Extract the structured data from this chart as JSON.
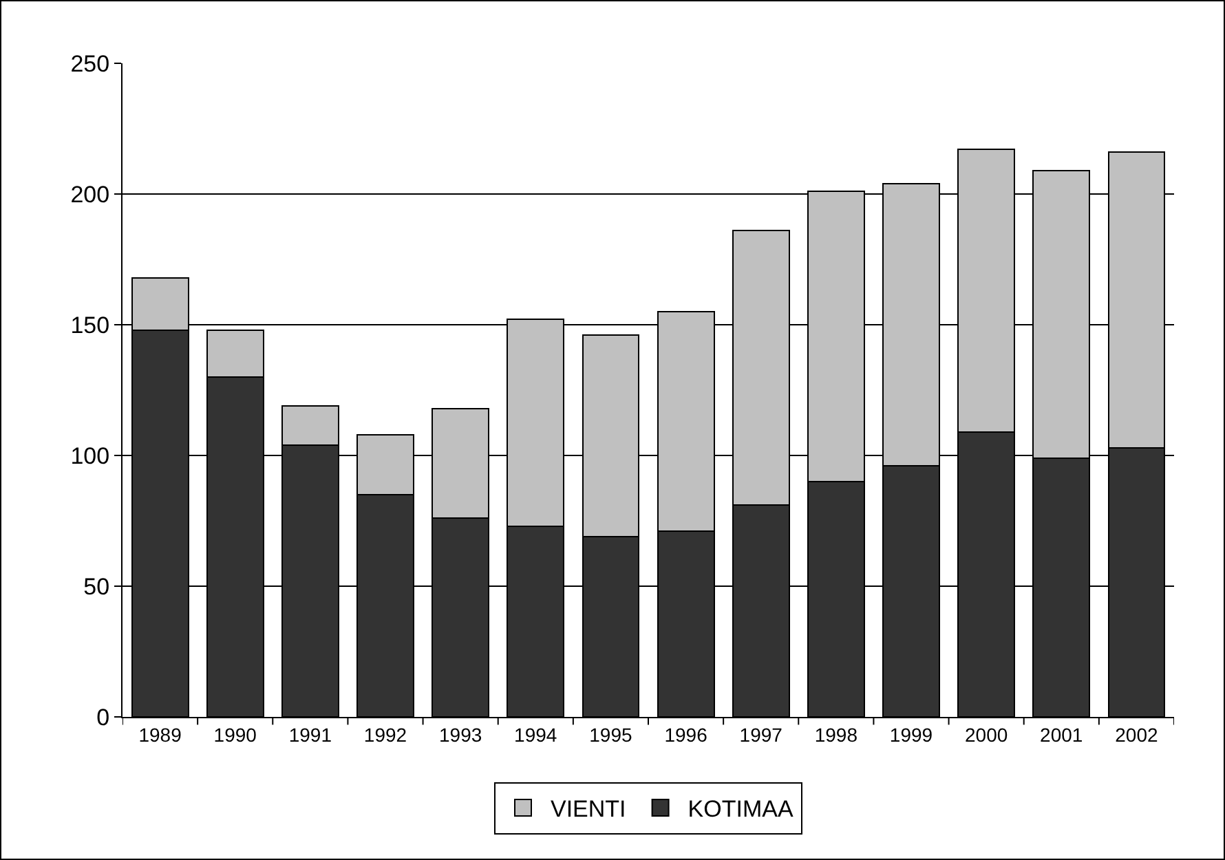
{
  "chart_data": {
    "type": "bar",
    "stacked": true,
    "categories": [
      "1989",
      "1990",
      "1991",
      "1992",
      "1993",
      "1994",
      "1995",
      "1996",
      "1997",
      "1998",
      "1999",
      "2000",
      "2001",
      "2002"
    ],
    "series": [
      {
        "name": "KOTIMAA",
        "color": "#333333",
        "values": [
          148,
          130,
          104,
          85,
          76,
          73,
          69,
          71,
          81,
          90,
          96,
          109,
          99,
          103
        ]
      },
      {
        "name": "VIENTI",
        "color": "#c0c0c0",
        "values": [
          20,
          18,
          15,
          23,
          42,
          79,
          77,
          84,
          105,
          111,
          108,
          108,
          110,
          113
        ]
      }
    ],
    "ylim": [
      0,
      250
    ],
    "yticks": [
      0,
      50,
      100,
      150,
      200,
      250
    ],
    "grid": "y",
    "legend": "bottom"
  }
}
